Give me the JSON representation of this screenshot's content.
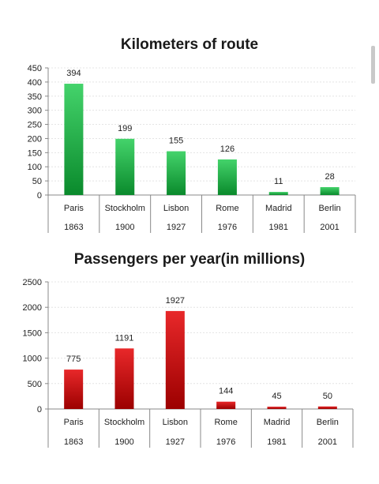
{
  "chart_data": [
    {
      "type": "bar",
      "title": "Kilometers of route",
      "categories": [
        "Paris",
        "Stockholm",
        "Lisbon",
        "Rome",
        "Madrid",
        "Berlin"
      ],
      "years": [
        "1863",
        "1900",
        "1927",
        "1976",
        "1981",
        "2001"
      ],
      "values": [
        394,
        199,
        155,
        126,
        11,
        28
      ],
      "ylim": [
        0,
        450
      ],
      "yticks": [
        0,
        50,
        100,
        150,
        200,
        250,
        300,
        350,
        400,
        450
      ],
      "grid": true,
      "legend": "none",
      "colors": {
        "bar_light": "#44d36b",
        "bar_dark": "#0a8a2c"
      }
    },
    {
      "type": "bar",
      "title": "Passengers per year(in millions)",
      "categories": [
        "Paris",
        "Stockholm",
        "Lisbon",
        "Rome",
        "Madrid",
        "Berlin"
      ],
      "years": [
        "1863",
        "1900",
        "1927",
        "1976",
        "1981",
        "2001"
      ],
      "values": [
        775,
        1191,
        1927,
        144,
        45,
        50
      ],
      "ylim": [
        0,
        2500
      ],
      "yticks": [
        0,
        500,
        1000,
        1500,
        2000,
        2500
      ],
      "grid": true,
      "legend": "none",
      "colors": {
        "bar_light": "#e8282a",
        "bar_dark": "#9c0000"
      }
    }
  ]
}
